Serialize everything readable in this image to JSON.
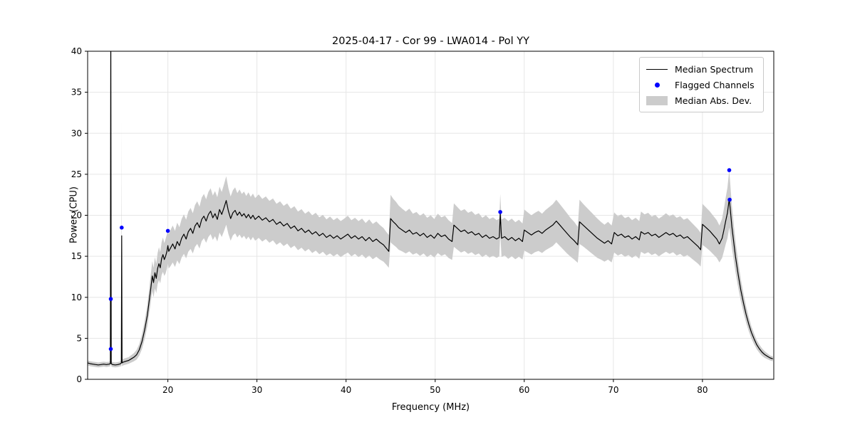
{
  "chart_data": {
    "type": "line",
    "title": "2025-04-17 - Cor 99 - LWA014 - Pol YY",
    "xlabel": "Frequency (MHz)",
    "ylabel": "Power (CPU)",
    "xlim": [
      11,
      88
    ],
    "ylim": [
      0,
      40
    ],
    "xticks": [
      20,
      30,
      40,
      50,
      60,
      70,
      80
    ],
    "yticks": [
      0,
      5,
      10,
      15,
      20,
      25,
      30,
      35,
      40
    ],
    "grid": true,
    "colors": {
      "line": "#000000",
      "marker": "#0000ff",
      "band": "#cccccc",
      "grid": "#e6e6e6",
      "frame": "#000000"
    },
    "legend": {
      "position": "upper right",
      "entries": [
        {
          "label": "Median Spectrum",
          "type": "line",
          "color": "#000000"
        },
        {
          "label": "Flagged Channels",
          "type": "marker",
          "color": "#0000ff"
        },
        {
          "label": "Median Abs. Dev.",
          "type": "patch",
          "color": "#cccccc"
        }
      ]
    },
    "points_format": [
      "frequency_mhz",
      "median_power",
      "median_abs_dev"
    ],
    "points": [
      [
        11.0,
        2.0,
        0.3
      ],
      [
        11.3,
        1.9,
        0.3
      ],
      [
        11.6,
        1.85,
        0.3
      ],
      [
        11.9,
        1.8,
        0.3
      ],
      [
        12.2,
        1.75,
        0.3
      ],
      [
        12.5,
        1.8,
        0.3
      ],
      [
        12.8,
        1.85,
        0.3
      ],
      [
        13.1,
        1.8,
        0.3
      ],
      [
        13.4,
        1.85,
        0.3
      ],
      [
        13.55,
        1.9,
        0.3
      ],
      [
        13.6,
        44.0,
        1.0
      ],
      [
        13.65,
        1.9,
        0.3
      ],
      [
        13.8,
        1.8,
        0.3
      ],
      [
        14.1,
        1.75,
        0.3
      ],
      [
        14.4,
        1.8,
        0.3
      ],
      [
        14.7,
        1.9,
        0.3
      ],
      [
        14.78,
        2.0,
        0.4
      ],
      [
        14.82,
        17.5,
        14.0
      ],
      [
        14.86,
        2.0,
        0.4
      ],
      [
        15.0,
        2.1,
        0.4
      ],
      [
        15.3,
        2.2,
        0.4
      ],
      [
        15.6,
        2.3,
        0.4
      ],
      [
        15.9,
        2.5,
        0.45
      ],
      [
        16.2,
        2.7,
        0.5
      ],
      [
        16.5,
        3.0,
        0.6
      ],
      [
        16.8,
        3.6,
        0.7
      ],
      [
        17.1,
        4.6,
        0.9
      ],
      [
        17.4,
        6.0,
        1.1
      ],
      [
        17.7,
        7.8,
        1.3
      ],
      [
        17.9,
        9.5,
        1.5
      ],
      [
        18.1,
        11.2,
        1.7
      ],
      [
        18.25,
        12.6,
        1.8
      ],
      [
        18.4,
        11.8,
        1.8
      ],
      [
        18.55,
        13.0,
        1.9
      ],
      [
        18.7,
        12.3,
        1.8
      ],
      [
        18.85,
        13.5,
        1.9
      ],
      [
        19.0,
        14.1,
        2.0
      ],
      [
        19.15,
        13.6,
        1.9
      ],
      [
        19.3,
        14.7,
        2.0
      ],
      [
        19.45,
        15.2,
        2.1
      ],
      [
        19.6,
        14.6,
        2.0
      ],
      [
        19.75,
        15.0,
        2.1
      ],
      [
        19.9,
        15.6,
        2.1
      ],
      [
        20.0,
        16.3,
        2.2
      ],
      [
        20.1,
        15.6,
        2.1
      ],
      [
        20.3,
        16.0,
        2.2
      ],
      [
        20.55,
        16.5,
        2.25
      ],
      [
        20.8,
        15.9,
        2.2
      ],
      [
        21.05,
        16.8,
        2.3
      ],
      [
        21.3,
        16.3,
        2.25
      ],
      [
        21.55,
        17.2,
        2.35
      ],
      [
        21.8,
        17.7,
        2.4
      ],
      [
        22.05,
        17.1,
        2.35
      ],
      [
        22.3,
        18.0,
        2.45
      ],
      [
        22.55,
        18.4,
        2.5
      ],
      [
        22.8,
        17.8,
        2.45
      ],
      [
        23.05,
        18.7,
        2.55
      ],
      [
        23.3,
        19.1,
        2.6
      ],
      [
        23.55,
        18.5,
        2.55
      ],
      [
        23.8,
        19.5,
        2.65
      ],
      [
        24.05,
        19.9,
        2.7
      ],
      [
        24.3,
        19.3,
        2.65
      ],
      [
        24.55,
        20.1,
        2.75
      ],
      [
        24.8,
        20.5,
        2.8
      ],
      [
        25.05,
        19.7,
        2.7
      ],
      [
        25.3,
        20.2,
        2.75
      ],
      [
        25.55,
        19.5,
        2.7
      ],
      [
        25.8,
        20.7,
        2.8
      ],
      [
        26.05,
        20.1,
        2.75
      ],
      [
        26.3,
        20.9,
        2.85
      ],
      [
        26.55,
        21.8,
        2.95
      ],
      [
        26.8,
        20.5,
        2.8
      ],
      [
        27.05,
        19.6,
        2.7
      ],
      [
        27.3,
        20.3,
        2.75
      ],
      [
        27.55,
        20.6,
        2.8
      ],
      [
        27.8,
        20.0,
        2.7
      ],
      [
        28.05,
        20.4,
        2.75
      ],
      [
        28.3,
        19.9,
        2.7
      ],
      [
        28.55,
        20.2,
        2.7
      ],
      [
        28.8,
        19.7,
        2.65
      ],
      [
        29.05,
        20.1,
        2.7
      ],
      [
        29.3,
        19.6,
        2.65
      ],
      [
        29.55,
        20.0,
        2.65
      ],
      [
        29.8,
        19.5,
        2.6
      ],
      [
        30.2,
        19.9,
        2.65
      ],
      [
        30.6,
        19.4,
        2.6
      ],
      [
        31.0,
        19.7,
        2.6
      ],
      [
        31.4,
        19.2,
        2.55
      ],
      [
        31.8,
        19.5,
        2.55
      ],
      [
        32.2,
        18.9,
        2.5
      ],
      [
        32.6,
        19.2,
        2.5
      ],
      [
        33.0,
        18.7,
        2.45
      ],
      [
        33.4,
        19.0,
        2.45
      ],
      [
        33.8,
        18.4,
        2.4
      ],
      [
        34.2,
        18.7,
        2.4
      ],
      [
        34.6,
        18.1,
        2.35
      ],
      [
        35.0,
        18.4,
        2.35
      ],
      [
        35.4,
        17.9,
        2.3
      ],
      [
        35.8,
        18.2,
        2.3
      ],
      [
        36.2,
        17.7,
        2.3
      ],
      [
        36.6,
        18.0,
        2.3
      ],
      [
        37.0,
        17.5,
        2.25
      ],
      [
        37.4,
        17.8,
        2.25
      ],
      [
        37.8,
        17.3,
        2.2
      ],
      [
        38.2,
        17.6,
        2.25
      ],
      [
        38.6,
        17.2,
        2.2
      ],
      [
        39.0,
        17.5,
        2.2
      ],
      [
        39.4,
        17.1,
        2.2
      ],
      [
        39.8,
        17.4,
        2.2
      ],
      [
        40.2,
        17.7,
        2.25
      ],
      [
        40.6,
        17.2,
        2.2
      ],
      [
        41.0,
        17.5,
        2.2
      ],
      [
        41.4,
        17.1,
        2.2
      ],
      [
        41.8,
        17.4,
        2.2
      ],
      [
        42.2,
        16.9,
        2.15
      ],
      [
        42.6,
        17.3,
        2.2
      ],
      [
        43.0,
        16.8,
        2.15
      ],
      [
        43.4,
        17.1,
        2.15
      ],
      [
        43.8,
        16.7,
        2.1
      ],
      [
        44.2,
        16.4,
        2.05
      ],
      [
        44.5,
        16.0,
        2.0
      ],
      [
        44.8,
        15.6,
        2.0
      ],
      [
        45.0,
        19.6,
        2.9
      ],
      [
        45.3,
        19.2,
        2.8
      ],
      [
        45.6,
        18.9,
        2.75
      ],
      [
        45.9,
        18.5,
        2.7
      ],
      [
        46.3,
        18.2,
        2.6
      ],
      [
        46.7,
        17.9,
        2.55
      ],
      [
        47.1,
        18.2,
        2.6
      ],
      [
        47.5,
        17.7,
        2.5
      ],
      [
        47.9,
        17.9,
        2.5
      ],
      [
        48.3,
        17.5,
        2.45
      ],
      [
        48.7,
        17.8,
        2.45
      ],
      [
        49.1,
        17.3,
        2.4
      ],
      [
        49.5,
        17.6,
        2.4
      ],
      [
        49.9,
        17.2,
        2.35
      ],
      [
        50.3,
        17.8,
        2.4
      ],
      [
        50.7,
        17.4,
        2.35
      ],
      [
        51.1,
        17.6,
        2.35
      ],
      [
        51.5,
        17.1,
        2.3
      ],
      [
        51.9,
        16.8,
        2.25
      ],
      [
        52.1,
        18.8,
        2.65
      ],
      [
        52.5,
        18.4,
        2.6
      ],
      [
        52.9,
        18.0,
        2.55
      ],
      [
        53.3,
        18.2,
        2.55
      ],
      [
        53.7,
        17.8,
        2.5
      ],
      [
        54.1,
        18.0,
        2.5
      ],
      [
        54.5,
        17.6,
        2.45
      ],
      [
        54.9,
        17.8,
        2.45
      ],
      [
        55.3,
        17.3,
        2.4
      ],
      [
        55.7,
        17.6,
        2.4
      ],
      [
        56.1,
        17.2,
        2.35
      ],
      [
        56.5,
        17.4,
        2.35
      ],
      [
        56.9,
        17.1,
        2.3
      ],
      [
        57.2,
        17.3,
        2.3
      ],
      [
        57.3,
        20.2,
        2.4
      ],
      [
        57.45,
        17.2,
        2.3
      ],
      [
        57.8,
        17.4,
        2.3
      ],
      [
        58.2,
        17.0,
        2.3
      ],
      [
        58.6,
        17.3,
        2.3
      ],
      [
        59.0,
        16.9,
        2.25
      ],
      [
        59.4,
        17.2,
        2.25
      ],
      [
        59.8,
        16.8,
        2.2
      ],
      [
        60.0,
        18.2,
        2.5
      ],
      [
        60.4,
        17.9,
        2.45
      ],
      [
        60.8,
        17.6,
        2.4
      ],
      [
        61.2,
        17.9,
        2.4
      ],
      [
        61.6,
        18.1,
        2.45
      ],
      [
        62.0,
        17.8,
        2.4
      ],
      [
        62.4,
        18.2,
        2.45
      ],
      [
        62.8,
        18.5,
        2.5
      ],
      [
        63.2,
        18.8,
        2.55
      ],
      [
        63.6,
        19.3,
        2.6
      ],
      [
        64.0,
        18.8,
        2.55
      ],
      [
        64.4,
        18.3,
        2.5
      ],
      [
        64.8,
        17.8,
        2.45
      ],
      [
        65.2,
        17.3,
        2.35
      ],
      [
        65.6,
        16.9,
        2.3
      ],
      [
        66.0,
        16.4,
        2.2
      ],
      [
        66.2,
        19.2,
        2.7
      ],
      [
        66.6,
        18.8,
        2.6
      ],
      [
        67.0,
        18.4,
        2.55
      ],
      [
        67.4,
        18.0,
        2.5
      ],
      [
        67.8,
        17.6,
        2.45
      ],
      [
        68.2,
        17.2,
        2.4
      ],
      [
        68.6,
        16.9,
        2.3
      ],
      [
        69.0,
        16.6,
        2.25
      ],
      [
        69.4,
        16.9,
        2.3
      ],
      [
        69.8,
        16.5,
        2.25
      ],
      [
        70.1,
        17.9,
        2.45
      ],
      [
        70.5,
        17.5,
        2.4
      ],
      [
        70.9,
        17.7,
        2.4
      ],
      [
        71.3,
        17.3,
        2.35
      ],
      [
        71.7,
        17.5,
        2.35
      ],
      [
        72.1,
        17.1,
        2.3
      ],
      [
        72.5,
        17.4,
        2.3
      ],
      [
        72.9,
        17.0,
        2.3
      ],
      [
        73.1,
        18.0,
        2.45
      ],
      [
        73.5,
        17.7,
        2.4
      ],
      [
        73.9,
        17.9,
        2.4
      ],
      [
        74.3,
        17.5,
        2.35
      ],
      [
        74.7,
        17.7,
        2.35
      ],
      [
        75.1,
        17.3,
        2.3
      ],
      [
        75.5,
        17.6,
        2.3
      ],
      [
        75.9,
        17.9,
        2.35
      ],
      [
        76.3,
        17.6,
        2.3
      ],
      [
        76.7,
        17.8,
        2.3
      ],
      [
        77.1,
        17.4,
        2.3
      ],
      [
        77.5,
        17.6,
        2.3
      ],
      [
        77.9,
        17.2,
        2.25
      ],
      [
        78.3,
        17.4,
        2.25
      ],
      [
        78.7,
        17.0,
        2.2
      ],
      [
        79.1,
        16.6,
        2.15
      ],
      [
        79.5,
        16.2,
        2.1
      ],
      [
        79.8,
        15.8,
        2.05
      ],
      [
        80.0,
        18.9,
        2.5
      ],
      [
        80.4,
        18.5,
        2.45
      ],
      [
        80.8,
        18.1,
        2.4
      ],
      [
        81.2,
        17.6,
        2.35
      ],
      [
        81.6,
        17.1,
        2.3
      ],
      [
        81.9,
        16.5,
        2.25
      ],
      [
        82.2,
        17.2,
        2.4
      ],
      [
        82.4,
        18.2,
        2.6
      ],
      [
        82.6,
        19.3,
        2.85
      ],
      [
        82.8,
        20.3,
        3.1
      ],
      [
        83.0,
        22.0,
        3.5
      ],
      [
        83.15,
        20.4,
        3.0
      ],
      [
        83.3,
        18.6,
        2.6
      ],
      [
        83.5,
        16.8,
        2.2
      ],
      [
        83.7,
        15.0,
        1.9
      ],
      [
        84.0,
        12.8,
        1.6
      ],
      [
        84.3,
        10.9,
        1.35
      ],
      [
        84.6,
        9.3,
        1.15
      ],
      [
        84.9,
        7.9,
        1.0
      ],
      [
        85.2,
        6.7,
        0.85
      ],
      [
        85.5,
        5.7,
        0.75
      ],
      [
        85.8,
        4.9,
        0.65
      ],
      [
        86.1,
        4.2,
        0.55
      ],
      [
        86.4,
        3.7,
        0.5
      ],
      [
        86.7,
        3.3,
        0.45
      ],
      [
        87.0,
        3.0,
        0.4
      ],
      [
        87.3,
        2.8,
        0.35
      ],
      [
        87.6,
        2.6,
        0.3
      ],
      [
        87.9,
        2.5,
        0.3
      ]
    ],
    "flagged_channels": {
      "x": [
        13.6,
        13.6,
        14.82,
        20.0,
        57.3,
        83.0,
        83.05
      ],
      "y": [
        9.8,
        3.7,
        18.5,
        18.1,
        20.4,
        25.5,
        21.9
      ]
    }
  }
}
